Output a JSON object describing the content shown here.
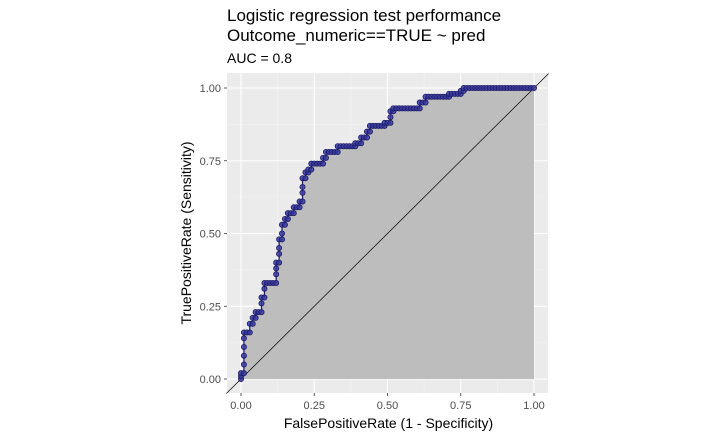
{
  "chart_data": {
    "type": "line",
    "title": "Logistic regression test performance",
    "subtitle": "Outcome_numeric==TRUE ~ pred",
    "caption": "AUC = 0.8",
    "xlabel": "FalsePositiveRate (1 - Specificity)",
    "ylabel": "TruePositiveRate (Sensitivity)",
    "xlim": [
      0,
      1
    ],
    "ylim": [
      0,
      1
    ],
    "x_ticks": [
      "0.00",
      "0.25",
      "0.50",
      "0.75",
      "1.00"
    ],
    "y_ticks": [
      "0.00",
      "0.25",
      "0.50",
      "0.75",
      "1.00"
    ],
    "grid": true,
    "reference_line": "diagonal",
    "area_fill": true,
    "roc_points": [
      [
        0.0,
        0.0
      ],
      [
        0.0,
        0.01
      ],
      [
        0.0,
        0.02
      ],
      [
        0.01,
        0.02
      ],
      [
        0.01,
        0.05
      ],
      [
        0.01,
        0.08
      ],
      [
        0.01,
        0.11
      ],
      [
        0.01,
        0.14
      ],
      [
        0.01,
        0.16
      ],
      [
        0.02,
        0.16
      ],
      [
        0.03,
        0.16
      ],
      [
        0.03,
        0.19
      ],
      [
        0.04,
        0.19
      ],
      [
        0.04,
        0.21
      ],
      [
        0.05,
        0.21
      ],
      [
        0.05,
        0.23
      ],
      [
        0.06,
        0.23
      ],
      [
        0.07,
        0.23
      ],
      [
        0.07,
        0.26
      ],
      [
        0.07,
        0.28
      ],
      [
        0.08,
        0.28
      ],
      [
        0.08,
        0.31
      ],
      [
        0.08,
        0.33
      ],
      [
        0.09,
        0.33
      ],
      [
        0.1,
        0.33
      ],
      [
        0.11,
        0.33
      ],
      [
        0.12,
        0.33
      ],
      [
        0.12,
        0.36
      ],
      [
        0.12,
        0.38
      ],
      [
        0.12,
        0.4
      ],
      [
        0.13,
        0.4
      ],
      [
        0.13,
        0.43
      ],
      [
        0.13,
        0.45
      ],
      [
        0.13,
        0.48
      ],
      [
        0.14,
        0.48
      ],
      [
        0.14,
        0.5
      ],
      [
        0.14,
        0.53
      ],
      [
        0.15,
        0.53
      ],
      [
        0.15,
        0.55
      ],
      [
        0.16,
        0.55
      ],
      [
        0.16,
        0.57
      ],
      [
        0.17,
        0.57
      ],
      [
        0.18,
        0.57
      ],
      [
        0.18,
        0.59
      ],
      [
        0.19,
        0.59
      ],
      [
        0.2,
        0.59
      ],
      [
        0.2,
        0.61
      ],
      [
        0.21,
        0.61
      ],
      [
        0.21,
        0.64
      ],
      [
        0.21,
        0.66
      ],
      [
        0.21,
        0.69
      ],
      [
        0.22,
        0.69
      ],
      [
        0.22,
        0.71
      ],
      [
        0.23,
        0.71
      ],
      [
        0.23,
        0.72
      ],
      [
        0.24,
        0.72
      ],
      [
        0.24,
        0.74
      ],
      [
        0.25,
        0.74
      ],
      [
        0.26,
        0.74
      ],
      [
        0.27,
        0.74
      ],
      [
        0.28,
        0.74
      ],
      [
        0.28,
        0.76
      ],
      [
        0.29,
        0.76
      ],
      [
        0.29,
        0.78
      ],
      [
        0.3,
        0.78
      ],
      [
        0.31,
        0.78
      ],
      [
        0.32,
        0.78
      ],
      [
        0.33,
        0.78
      ],
      [
        0.33,
        0.8
      ],
      [
        0.34,
        0.8
      ],
      [
        0.35,
        0.8
      ],
      [
        0.36,
        0.8
      ],
      [
        0.37,
        0.8
      ],
      [
        0.38,
        0.8
      ],
      [
        0.39,
        0.8
      ],
      [
        0.39,
        0.81
      ],
      [
        0.4,
        0.81
      ],
      [
        0.41,
        0.81
      ],
      [
        0.41,
        0.83
      ],
      [
        0.42,
        0.83
      ],
      [
        0.43,
        0.83
      ],
      [
        0.43,
        0.85
      ],
      [
        0.44,
        0.85
      ],
      [
        0.44,
        0.87
      ],
      [
        0.45,
        0.87
      ],
      [
        0.46,
        0.87
      ],
      [
        0.47,
        0.87
      ],
      [
        0.48,
        0.87
      ],
      [
        0.49,
        0.87
      ],
      [
        0.49,
        0.88
      ],
      [
        0.5,
        0.88
      ],
      [
        0.51,
        0.88
      ],
      [
        0.51,
        0.9
      ],
      [
        0.51,
        0.92
      ],
      [
        0.52,
        0.92
      ],
      [
        0.52,
        0.93
      ],
      [
        0.53,
        0.93
      ],
      [
        0.54,
        0.93
      ],
      [
        0.55,
        0.93
      ],
      [
        0.56,
        0.93
      ],
      [
        0.57,
        0.93
      ],
      [
        0.58,
        0.93
      ],
      [
        0.59,
        0.93
      ],
      [
        0.6,
        0.93
      ],
      [
        0.61,
        0.93
      ],
      [
        0.61,
        0.95
      ],
      [
        0.62,
        0.95
      ],
      [
        0.63,
        0.95
      ],
      [
        0.63,
        0.97
      ],
      [
        0.64,
        0.97
      ],
      [
        0.65,
        0.97
      ],
      [
        0.66,
        0.97
      ],
      [
        0.67,
        0.97
      ],
      [
        0.68,
        0.97
      ],
      [
        0.69,
        0.97
      ],
      [
        0.7,
        0.97
      ],
      [
        0.71,
        0.97
      ],
      [
        0.71,
        0.98
      ],
      [
        0.72,
        0.98
      ],
      [
        0.73,
        0.98
      ],
      [
        0.74,
        0.98
      ],
      [
        0.75,
        0.98
      ],
      [
        0.75,
        0.99
      ],
      [
        0.76,
        0.99
      ],
      [
        0.76,
        1.0
      ],
      [
        0.77,
        1.0
      ],
      [
        0.78,
        1.0
      ],
      [
        0.79,
        1.0
      ],
      [
        0.8,
        1.0
      ],
      [
        0.81,
        1.0
      ],
      [
        0.82,
        1.0
      ],
      [
        0.83,
        1.0
      ],
      [
        0.84,
        1.0
      ],
      [
        0.85,
        1.0
      ],
      [
        0.86,
        1.0
      ],
      [
        0.87,
        1.0
      ],
      [
        0.88,
        1.0
      ],
      [
        0.89,
        1.0
      ],
      [
        0.9,
        1.0
      ],
      [
        0.91,
        1.0
      ],
      [
        0.92,
        1.0
      ],
      [
        0.93,
        1.0
      ],
      [
        0.94,
        1.0
      ],
      [
        0.95,
        1.0
      ],
      [
        0.96,
        1.0
      ],
      [
        0.97,
        1.0
      ],
      [
        0.98,
        1.0
      ],
      [
        0.99,
        1.0
      ],
      [
        1.0,
        1.0
      ]
    ],
    "colors": {
      "panel": "#ebebeb",
      "grid_major": "#ffffff",
      "grid_minor": "#f5f5f5",
      "area": "#bdbdbd",
      "point_fill": "#3a3aa0",
      "point_stroke": "#1a1a66",
      "diagonal": "#000000"
    }
  }
}
